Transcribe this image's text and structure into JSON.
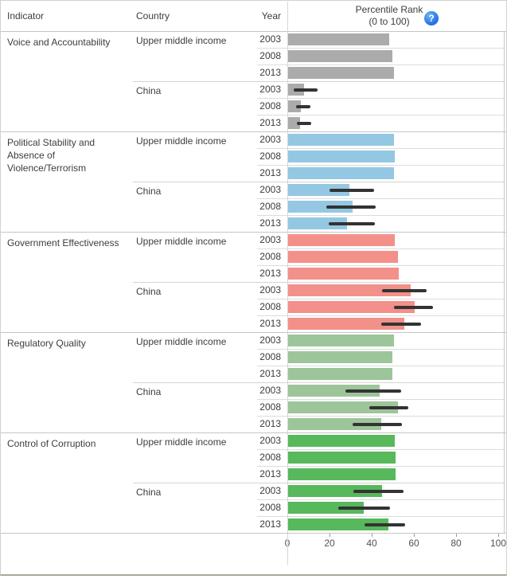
{
  "header": {
    "indicator_label": "Indicator",
    "country_label": "Country",
    "year_label": "Year",
    "value_axis_title_line1": "Percentile Rank",
    "value_axis_title_line2": "(0 to 100)",
    "help_icon_glyph": "?"
  },
  "chart_data": {
    "type": "bar",
    "orientation": "horizontal",
    "title": "Percentile Rank (0 to 100)",
    "xlabel": "",
    "ylabel": "",
    "xlim": [
      0,
      100
    ],
    "x_ticks": [
      0,
      20,
      40,
      60,
      80,
      100
    ],
    "grid": "row-separators-only",
    "error_bar_color": "#333333",
    "sections": [
      {
        "indicator": "Voice and Accountability",
        "color": "#ABABAB",
        "groups": [
          {
            "country": "Upper middle income",
            "rows": [
              {
                "year": "2003",
                "value": 48.0,
                "err": null
              },
              {
                "year": "2008",
                "value": 49.5,
                "err": null
              },
              {
                "year": "2013",
                "value": 50.0,
                "err": null
              }
            ]
          },
          {
            "country": "China",
            "rows": [
              {
                "year": "2003",
                "value": 7.5,
                "err": [
                  3.0,
                  14.5
                ]
              },
              {
                "year": "2008",
                "value": 6.0,
                "err": [
                  4.0,
                  11.0
                ]
              },
              {
                "year": "2013",
                "value": 5.5,
                "err": [
                  4.5,
                  11.5
                ]
              }
            ]
          }
        ]
      },
      {
        "indicator": "Political Stability and Absence of Violence/Terrorism",
        "color": "#94C8E2",
        "groups": [
          {
            "country": "Upper middle income",
            "rows": [
              {
                "year": "2003",
                "value": 50.0,
                "err": null
              },
              {
                "year": "2008",
                "value": 50.5,
                "err": null
              },
              {
                "year": "2013",
                "value": 50.0,
                "err": null
              }
            ]
          },
          {
            "country": "China",
            "rows": [
              {
                "year": "2003",
                "value": 29.0,
                "err": [
                  20.0,
                  41.0
                ]
              },
              {
                "year": "2008",
                "value": 30.5,
                "err": [
                  18.5,
                  42.0
                ]
              },
              {
                "year": "2013",
                "value": 28.0,
                "err": [
                  19.5,
                  41.5
                ]
              }
            ]
          }
        ]
      },
      {
        "indicator": "Government Effectiveness",
        "color": "#F3908A",
        "groups": [
          {
            "country": "Upper middle income",
            "rows": [
              {
                "year": "2003",
                "value": 50.5,
                "err": null
              },
              {
                "year": "2008",
                "value": 52.0,
                "err": null
              },
              {
                "year": "2013",
                "value": 52.5,
                "err": null
              }
            ]
          },
          {
            "country": "China",
            "rows": [
              {
                "year": "2003",
                "value": 58.0,
                "err": [
                  45.0,
                  66.0
                ]
              },
              {
                "year": "2008",
                "value": 60.0,
                "err": [
                  50.5,
                  69.0
                ]
              },
              {
                "year": "2013",
                "value": 55.0,
                "err": [
                  44.5,
                  63.5
                ]
              }
            ]
          }
        ]
      },
      {
        "indicator": "Regulatory Quality",
        "color": "#9DC59A",
        "groups": [
          {
            "country": "Upper middle income",
            "rows": [
              {
                "year": "2003",
                "value": 50.0,
                "err": null
              },
              {
                "year": "2008",
                "value": 49.5,
                "err": null
              },
              {
                "year": "2013",
                "value": 49.5,
                "err": null
              }
            ]
          },
          {
            "country": "China",
            "rows": [
              {
                "year": "2003",
                "value": 43.5,
                "err": [
                  27.5,
                  54.0
                ]
              },
              {
                "year": "2008",
                "value": 52.0,
                "err": [
                  39.0,
                  57.5
                ]
              },
              {
                "year": "2013",
                "value": 44.0,
                "err": [
                  31.0,
                  54.5
                ]
              }
            ]
          }
        ]
      },
      {
        "indicator": "Control of Corruption",
        "color": "#57B85C",
        "groups": [
          {
            "country": "Upper middle income",
            "rows": [
              {
                "year": "2003",
                "value": 50.5,
                "err": null
              },
              {
                "year": "2008",
                "value": 51.0,
                "err": null
              },
              {
                "year": "2013",
                "value": 51.0,
                "err": null
              }
            ]
          },
          {
            "country": "China",
            "rows": [
              {
                "year": "2003",
                "value": 44.5,
                "err": [
                  31.5,
                  55.0
                ]
              },
              {
                "year": "2008",
                "value": 36.0,
                "err": [
                  24.0,
                  48.5
                ]
              },
              {
                "year": "2013",
                "value": 47.5,
                "err": [
                  36.5,
                  56.0
                ]
              }
            ]
          }
        ]
      }
    ]
  }
}
